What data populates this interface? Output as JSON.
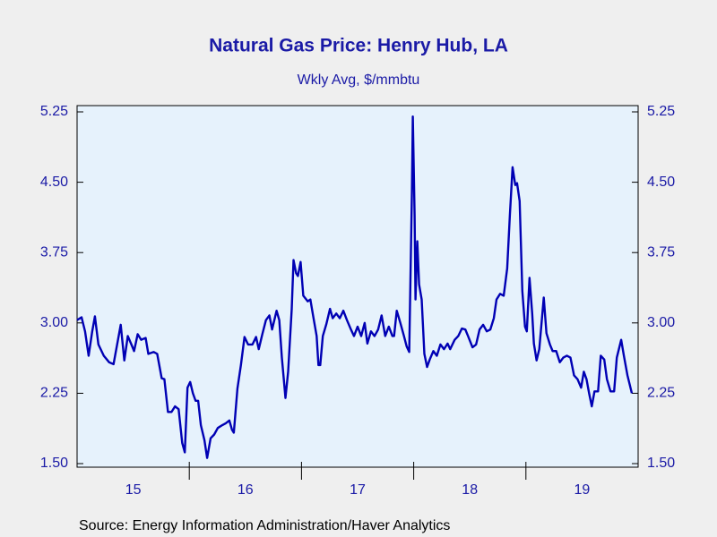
{
  "chart_data": {
    "type": "line",
    "title": "Natural Gas Price: Henry Hub, LA",
    "subtitle": "Wkly Avg, $/mmbtu",
    "source": "Source:  Energy Information Administration/Haver Analytics",
    "color": "#0000b4",
    "x": [
      2015.0,
      2015.04,
      2015.071,
      2015.103,
      2015.135,
      2015.159,
      2015.19,
      2015.238,
      2015.286,
      2015.325,
      2015.357,
      2015.389,
      2015.421,
      2015.452,
      2015.484,
      2015.508,
      2015.54,
      2015.571,
      2015.611,
      2015.635,
      2015.683,
      2015.714,
      2015.754,
      2015.778,
      2015.81,
      2015.841,
      2015.873,
      2015.905,
      2015.937,
      2015.96,
      2015.984,
      2016.008,
      2016.032,
      2016.056,
      2016.079,
      2016.103,
      2016.135,
      2016.159,
      2016.19,
      2016.222,
      2016.254,
      2016.294,
      2016.325,
      2016.357,
      2016.381,
      2016.397,
      2016.429,
      2016.46,
      2016.492,
      2016.524,
      2016.563,
      2016.595,
      2016.619,
      2016.651,
      2016.683,
      2016.714,
      2016.738,
      2016.778,
      2016.802,
      2016.825,
      2016.857,
      2016.881,
      2016.913,
      2016.929,
      2016.952,
      2016.968,
      2016.992,
      2017.016,
      2017.056,
      2017.079,
      2017.103,
      2017.135,
      2017.151,
      2017.167,
      2017.19,
      2017.222,
      2017.254,
      2017.278,
      2017.31,
      2017.341,
      2017.373,
      2017.405,
      2017.437,
      2017.468,
      2017.5,
      2017.532,
      2017.563,
      2017.587,
      2017.619,
      2017.651,
      2017.683,
      2017.714,
      2017.746,
      2017.778,
      2017.81,
      2017.825,
      2017.849,
      2017.881,
      2017.913,
      2017.937,
      2017.96,
      2017.984,
      2017.992,
      2018.008,
      2018.016,
      2018.032,
      2018.048,
      2018.071,
      2018.095,
      2018.119,
      2018.143,
      2018.175,
      2018.206,
      2018.238,
      2018.27,
      2018.302,
      2018.325,
      2018.365,
      2018.397,
      2018.429,
      2018.46,
      2018.484,
      2018.524,
      2018.556,
      2018.587,
      2018.619,
      2018.651,
      2018.683,
      2018.714,
      2018.738,
      2018.77,
      2018.802,
      2018.833,
      2018.857,
      2018.881,
      2018.905,
      2018.921,
      2018.944,
      2018.968,
      2018.992,
      2019.008,
      2019.032,
      2019.056,
      2019.071,
      2019.095,
      2019.119,
      2019.159,
      2019.183,
      2019.214,
      2019.238,
      2019.27,
      2019.302,
      2019.333,
      2019.365,
      2019.397,
      2019.429,
      2019.46,
      2019.492,
      2019.516,
      2019.54,
      2019.563,
      2019.587,
      2019.611,
      2019.643,
      2019.667,
      2019.698,
      2019.722,
      2019.754,
      2019.786,
      2019.81,
      2019.849,
      2019.873,
      2019.905,
      2019.944
    ],
    "values": [
      3.03,
      3.06,
      2.91,
      2.65,
      2.91,
      3.07,
      2.77,
      2.65,
      2.58,
      2.56,
      2.77,
      2.98,
      2.6,
      2.86,
      2.77,
      2.7,
      2.88,
      2.82,
      2.84,
      2.67,
      2.69,
      2.67,
      2.41,
      2.4,
      2.05,
      2.05,
      2.11,
      2.08,
      1.72,
      1.62,
      2.31,
      2.37,
      2.25,
      2.17,
      2.17,
      1.91,
      1.75,
      1.56,
      1.77,
      1.81,
      1.88,
      1.91,
      1.93,
      1.96,
      1.86,
      1.83,
      2.3,
      2.55,
      2.85,
      2.77,
      2.77,
      2.85,
      2.72,
      2.88,
      3.03,
      3.08,
      2.93,
      3.13,
      3.03,
      2.63,
      2.2,
      2.48,
      3.15,
      3.67,
      3.53,
      3.5,
      3.65,
      3.29,
      3.23,
      3.25,
      3.08,
      2.86,
      2.55,
      2.55,
      2.86,
      2.99,
      3.15,
      3.05,
      3.1,
      3.05,
      3.13,
      3.03,
      2.94,
      2.86,
      2.96,
      2.86,
      3.0,
      2.78,
      2.91,
      2.86,
      2.93,
      3.08,
      2.86,
      2.96,
      2.86,
      2.86,
      3.13,
      3.0,
      2.86,
      2.75,
      2.69,
      4.39,
      5.2,
      4.15,
      3.25,
      3.87,
      3.41,
      3.25,
      2.67,
      2.53,
      2.61,
      2.7,
      2.65,
      2.77,
      2.72,
      2.78,
      2.72,
      2.82,
      2.86,
      2.94,
      2.93,
      2.86,
      2.74,
      2.77,
      2.93,
      2.98,
      2.91,
      2.93,
      3.05,
      3.25,
      3.31,
      3.29,
      3.58,
      4.15,
      4.66,
      4.47,
      4.49,
      4.3,
      3.34,
      2.96,
      2.91,
      3.48,
      3.1,
      2.78,
      2.6,
      2.72,
      3.27,
      2.89,
      2.77,
      2.7,
      2.7,
      2.58,
      2.63,
      2.65,
      2.63,
      2.44,
      2.4,
      2.31,
      2.48,
      2.4,
      2.25,
      2.11,
      2.27,
      2.27,
      2.65,
      2.61,
      2.4,
      2.27,
      2.27,
      2.63,
      2.82,
      2.65,
      2.44,
      2.25
    ],
    "xlim": [
      2015,
      2020
    ],
    "xticks": [
      2016,
      2017,
      2018,
      2019
    ],
    "xlabels": [
      {
        "value": 2015.5,
        "label": "15"
      },
      {
        "value": 2016.5,
        "label": "16"
      },
      {
        "value": 2017.5,
        "label": "17"
      },
      {
        "value": 2018.5,
        "label": "18"
      },
      {
        "value": 2019.5,
        "label": "19"
      }
    ],
    "ylim": [
      1.5,
      5.25
    ],
    "yticks": [
      {
        "value": 1.5,
        "label": "1.50"
      },
      2.25,
      {
        "value": 3,
        "label": "3.00"
      },
      3.75,
      {
        "value": 4.5,
        "label": "4.50"
      },
      5.25
    ],
    "right_axis": true
  }
}
